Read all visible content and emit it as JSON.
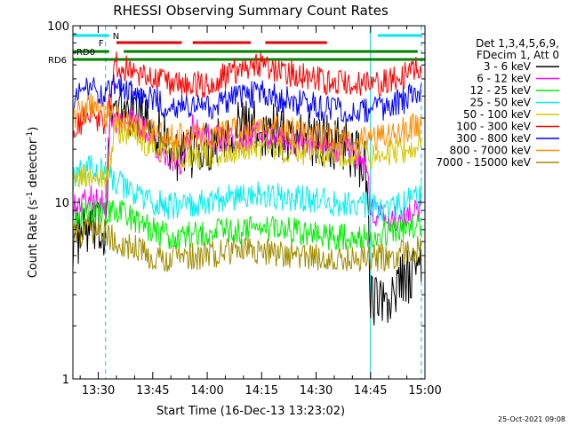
{
  "chart_data": {
    "type": "line",
    "title": "RHESSI Observing Summary Count Rates",
    "xlabel": "Start Time (16-Dec-13 13:23:02)",
    "ylabel_main": "Count Rate (s",
    "ylabel_sup1": "-1",
    "ylabel_mid": " detector",
    "ylabel_sup2": "-1",
    "ylabel_end": ")",
    "yscale": "log",
    "ylim": [
      1,
      100
    ],
    "xlim": [
      "13:23",
      "15:00"
    ],
    "x_ticks": [
      "13:30",
      "13:45",
      "14:00",
      "14:15",
      "14:30",
      "14:45",
      "15:00"
    ],
    "y_ticks": [
      "1",
      "10",
      "100"
    ],
    "grid": false,
    "legend_header": [
      "Det 1,3,4,5,6,9,",
      "FDecim 1, Att 0"
    ],
    "legend_position": "right",
    "timestamp": "25-Oct-2021 09:08",
    "flags": [
      {
        "label": "N",
        "color": "#00e5ee",
        "segments": [
          [
            "13:23",
            "13:33"
          ],
          [
            "14:47",
            "14:59"
          ]
        ]
      },
      {
        "label": "F",
        "color": "#e00000",
        "segments": [
          [
            "13:35",
            "13:53"
          ],
          [
            "13:56",
            "14:12"
          ],
          [
            "14:16",
            "14:33"
          ]
        ]
      },
      {
        "label": "RD0",
        "color": "#008000",
        "segments": [
          [
            "13:23",
            "13:33"
          ],
          [
            "13:37",
            "14:58"
          ]
        ]
      },
      {
        "label": "RD6",
        "color": "#008000",
        "segments": [
          [
            "13:23",
            "15:00"
          ]
        ]
      }
    ],
    "vlines": [
      {
        "time": "13:32",
        "color": "#00c8d8",
        "dash": true
      },
      {
        "time": "14:45",
        "color": "#00c8d8",
        "dash": false
      },
      {
        "time": "14:59",
        "color": "#00c8d8",
        "dash": true
      }
    ],
    "series": [
      {
        "name": "3 - 6 keV",
        "color": "#000000",
        "points": [
          [
            "13:23",
            6
          ],
          [
            "13:28",
            7
          ],
          [
            "13:32",
            6.8
          ],
          [
            "13:33",
            31
          ],
          [
            "13:38",
            34
          ],
          [
            "13:43",
            30
          ],
          [
            "13:48",
            24
          ],
          [
            "13:53",
            17
          ],
          [
            "13:57",
            20
          ],
          [
            "14:02",
            22
          ],
          [
            "14:05",
            26
          ],
          [
            "14:10",
            27
          ],
          [
            "14:15",
            26
          ],
          [
            "14:20",
            25
          ],
          [
            "14:25",
            24
          ],
          [
            "14:30",
            23
          ],
          [
            "14:34",
            22
          ],
          [
            "14:38",
            22
          ],
          [
            "14:42",
            17
          ],
          [
            "14:44",
            15
          ],
          [
            "14:45",
            3
          ],
          [
            "14:49",
            2.5
          ],
          [
            "14:53",
            3.5
          ],
          [
            "14:57",
            4
          ],
          [
            "14:59",
            4.5
          ]
        ]
      },
      {
        "name": "6 - 12 keV",
        "color": "#ff00ff",
        "points": [
          [
            "13:23",
            9.5
          ],
          [
            "13:28",
            10.5
          ],
          [
            "13:32",
            10
          ],
          [
            "13:33",
            27
          ],
          [
            "13:38",
            29
          ],
          [
            "13:43",
            25
          ],
          [
            "13:47",
            20
          ],
          [
            "13:50",
            18
          ],
          [
            "13:53",
            17
          ],
          [
            "13:56",
            27
          ],
          [
            "14:00",
            24
          ],
          [
            "14:05",
            22
          ],
          [
            "14:10",
            23
          ],
          [
            "14:15",
            24
          ],
          [
            "14:20",
            23
          ],
          [
            "14:25",
            22
          ],
          [
            "14:30",
            21
          ],
          [
            "14:34",
            20
          ],
          [
            "14:38",
            20
          ],
          [
            "14:42",
            18
          ],
          [
            "14:44",
            15
          ],
          [
            "14:45",
            9
          ],
          [
            "14:49",
            8
          ],
          [
            "14:53",
            8
          ],
          [
            "14:57",
            8.5
          ],
          [
            "14:59",
            9
          ]
        ]
      },
      {
        "name": "12 - 25 keV",
        "color": "#00ee00",
        "points": [
          [
            "13:23",
            8.5
          ],
          [
            "13:28",
            9
          ],
          [
            "13:32",
            8.5
          ],
          [
            "13:35",
            9
          ],
          [
            "13:40",
            8
          ],
          [
            "13:45",
            7
          ],
          [
            "13:50",
            6.3
          ],
          [
            "13:55",
            6.5
          ],
          [
            "14:00",
            6.8
          ],
          [
            "14:05",
            7
          ],
          [
            "14:10",
            7
          ],
          [
            "14:15",
            7.2
          ],
          [
            "14:20",
            7
          ],
          [
            "14:25",
            6.8
          ],
          [
            "14:30",
            6.5
          ],
          [
            "14:35",
            6.3
          ],
          [
            "14:40",
            6.5
          ],
          [
            "14:45",
            6.6
          ],
          [
            "14:50",
            6.8
          ],
          [
            "14:55",
            7.2
          ],
          [
            "14:59",
            7.5
          ]
        ]
      },
      {
        "name": "25 - 50 keV",
        "color": "#00eeee",
        "points": [
          [
            "13:23",
            14
          ],
          [
            "13:28",
            15.5
          ],
          [
            "13:32",
            14.5
          ],
          [
            "13:35",
            13
          ],
          [
            "13:40",
            11
          ],
          [
            "13:45",
            10
          ],
          [
            "13:50",
            9.5
          ],
          [
            "13:55",
            9.6
          ],
          [
            "14:00",
            10
          ],
          [
            "14:05",
            10.5
          ],
          [
            "14:10",
            10.8
          ],
          [
            "14:15",
            11
          ],
          [
            "14:20",
            10.8
          ],
          [
            "14:25",
            10.5
          ],
          [
            "14:30",
            10.2
          ],
          [
            "14:35",
            10
          ],
          [
            "14:40",
            10
          ],
          [
            "14:45",
            9.5
          ],
          [
            "14:50",
            9.2
          ],
          [
            "14:55",
            10
          ],
          [
            "14:59",
            11
          ]
        ]
      },
      {
        "name": "50 - 100 keV",
        "color": "#d2c800",
        "points": [
          [
            "13:23",
            13
          ],
          [
            "13:28",
            14
          ],
          [
            "13:32",
            13
          ],
          [
            "13:35",
            26
          ],
          [
            "13:40",
            24
          ],
          [
            "13:45",
            21
          ],
          [
            "13:50",
            19
          ],
          [
            "13:55",
            18.5
          ],
          [
            "14:00",
            18.7
          ],
          [
            "14:05",
            19.5
          ],
          [
            "14:10",
            20
          ],
          [
            "14:15",
            20.5
          ],
          [
            "14:20",
            20
          ],
          [
            "14:25",
            19.5
          ],
          [
            "14:30",
            19
          ],
          [
            "14:35",
            18.5
          ],
          [
            "14:40",
            19
          ],
          [
            "14:45",
            18.5
          ],
          [
            "14:50",
            18.8
          ],
          [
            "14:55",
            20
          ],
          [
            "14:59",
            22
          ]
        ]
      },
      {
        "name": "100 - 300 keV",
        "color": "#ff0000",
        "points": [
          [
            "13:23",
            27
          ],
          [
            "13:28",
            31
          ],
          [
            "13:32",
            28
          ],
          [
            "13:35",
            60
          ],
          [
            "13:40",
            56
          ],
          [
            "13:45",
            50
          ],
          [
            "13:50",
            47
          ],
          [
            "13:55",
            46
          ],
          [
            "14:00",
            47
          ],
          [
            "14:05",
            52
          ],
          [
            "14:10",
            58
          ],
          [
            "14:15",
            60
          ],
          [
            "14:20",
            56
          ],
          [
            "14:25",
            52
          ],
          [
            "14:30",
            50
          ],
          [
            "14:35",
            48
          ],
          [
            "14:40",
            47
          ],
          [
            "14:45",
            46
          ],
          [
            "14:50",
            48
          ],
          [
            "14:55",
            54
          ],
          [
            "14:59",
            60
          ]
        ]
      },
      {
        "name": "300 - 800 keV",
        "color": "#0000ff",
        "points": [
          [
            "13:23",
            38
          ],
          [
            "13:28",
            44
          ],
          [
            "13:32",
            40
          ],
          [
            "13:35",
            46
          ],
          [
            "13:40",
            42
          ],
          [
            "13:45",
            38
          ],
          [
            "13:50",
            35
          ],
          [
            "13:55",
            34
          ],
          [
            "14:00",
            35
          ],
          [
            "14:05",
            37
          ],
          [
            "14:10",
            40
          ],
          [
            "14:15",
            41
          ],
          [
            "14:20",
            39
          ],
          [
            "14:25",
            37
          ],
          [
            "14:30",
            35
          ],
          [
            "14:35",
            34
          ],
          [
            "14:40",
            33
          ],
          [
            "14:45",
            33
          ],
          [
            "14:50",
            35
          ],
          [
            "14:55",
            38
          ],
          [
            "14:59",
            42
          ]
        ]
      },
      {
        "name": "800 - 7000 keV",
        "color": "#ff8c00",
        "points": [
          [
            "13:23",
            30
          ],
          [
            "13:28",
            35
          ],
          [
            "13:32",
            32
          ],
          [
            "13:35",
            30
          ],
          [
            "13:40",
            27
          ],
          [
            "13:45",
            25
          ],
          [
            "13:50",
            23.5
          ],
          [
            "13:55",
            23
          ],
          [
            "14:00",
            24
          ],
          [
            "14:05",
            25
          ],
          [
            "14:10",
            26.5
          ],
          [
            "14:15",
            27
          ],
          [
            "14:20",
            26
          ],
          [
            "14:25",
            25
          ],
          [
            "14:30",
            24
          ],
          [
            "14:35",
            23
          ],
          [
            "14:40",
            23
          ],
          [
            "14:45",
            23
          ],
          [
            "14:50",
            24
          ],
          [
            "14:55",
            26
          ],
          [
            "14:59",
            28
          ]
        ]
      },
      {
        "name": "7000 - 15000 keV",
        "color": "#a08c00",
        "points": [
          [
            "13:23",
            6.5
          ],
          [
            "13:28",
            7
          ],
          [
            "13:32",
            6.8
          ],
          [
            "13:35",
            6
          ],
          [
            "13:40",
            5.5
          ],
          [
            "13:45",
            5
          ],
          [
            "13:50",
            4.8
          ],
          [
            "13:55",
            4.9
          ],
          [
            "14:00",
            5
          ],
          [
            "14:05",
            5.2
          ],
          [
            "14:10",
            5.3
          ],
          [
            "14:15",
            5.3
          ],
          [
            "14:20",
            5.1
          ],
          [
            "14:25",
            5
          ],
          [
            "14:30",
            4.9
          ],
          [
            "14:35",
            4.8
          ],
          [
            "14:40",
            4.8
          ],
          [
            "14:45",
            4.8
          ],
          [
            "14:50",
            4.9
          ],
          [
            "14:55",
            5.2
          ],
          [
            "14:59",
            5.5
          ]
        ]
      }
    ]
  }
}
